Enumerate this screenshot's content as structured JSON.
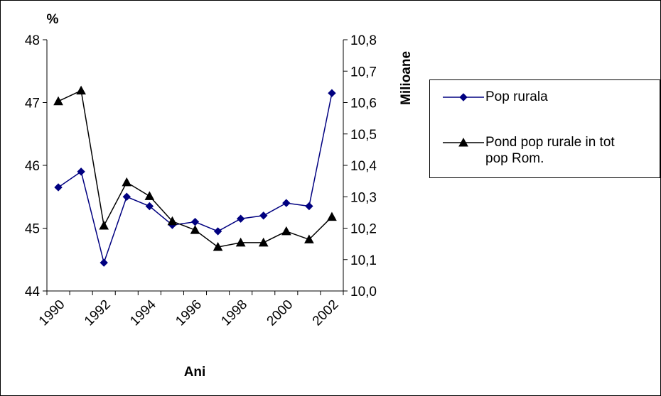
{
  "chart_data": {
    "type": "line",
    "ylabel": "%",
    "y2label": "Milioane",
    "xlabel": "Ani",
    "categories": [
      "1990",
      null,
      "1992",
      null,
      "1994",
      null,
      "1996",
      null,
      "1998",
      null,
      "2000",
      null,
      "2002"
    ],
    "ylim": [
      44,
      48
    ],
    "yticks": [
      44,
      45,
      46,
      47,
      48
    ],
    "y2lim": [
      10.0,
      10.8
    ],
    "y2ticks": [
      {
        "value": 10.0,
        "label": "10,0"
      },
      {
        "value": 10.1,
        "label": "10,1"
      },
      {
        "value": 10.2,
        "label": "10,2"
      },
      {
        "value": 10.3,
        "label": "10,3"
      },
      {
        "value": 10.4,
        "label": "10,4"
      },
      {
        "value": 10.5,
        "label": "10,5"
      },
      {
        "value": 10.6,
        "label": "10,6"
      },
      {
        "value": 10.7,
        "label": "10,7"
      },
      {
        "value": 10.8,
        "label": "10,8"
      }
    ],
    "series": [
      {
        "name": "Pop rurala",
        "color": "#000080",
        "marker": "diamond",
        "axis": "y2",
        "values": [
          10.33,
          10.38,
          10.09,
          10.3,
          10.27,
          10.21,
          10.22,
          10.19,
          10.23,
          10.24,
          10.28,
          10.27,
          10.63
        ]
      },
      {
        "name": "Pond pop rurale in tot pop Rom.",
        "color": "#000000",
        "marker": "triangle",
        "axis": "y",
        "values": [
          47.02,
          47.19,
          45.04,
          45.73,
          45.51,
          45.11,
          44.97,
          44.7,
          44.77,
          44.77,
          44.95,
          44.82,
          45.18
        ]
      }
    ]
  }
}
